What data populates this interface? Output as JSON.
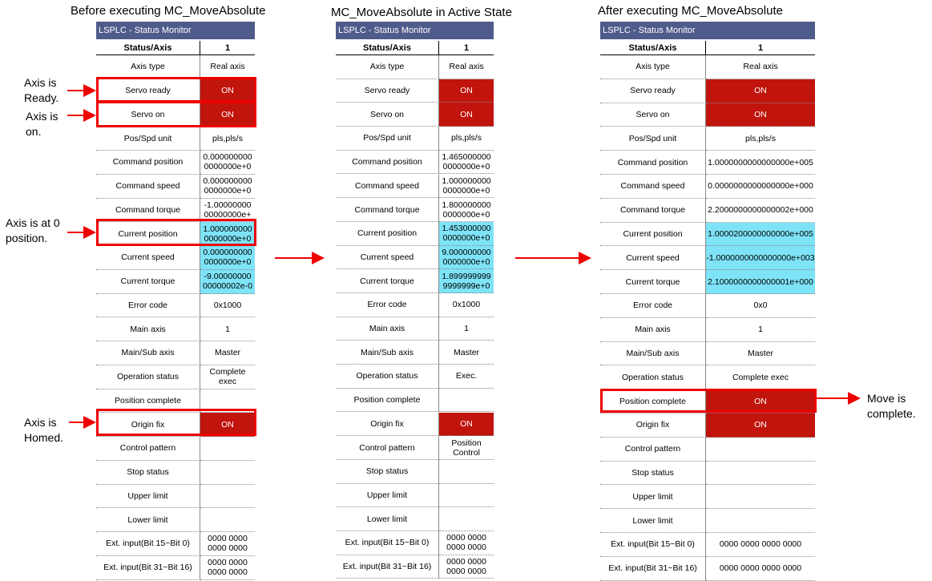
{
  "window_title": "LSPLC - Status Monitor",
  "header": {
    "status_axis": "Status/Axis",
    "axis_number": "1"
  },
  "panels": [
    {
      "title": "Before executing MC_MoveAbsolute",
      "rows": [
        {
          "label": "Axis type",
          "value": "Real axis",
          "style": "plain"
        },
        {
          "label": "Servo ready",
          "value": "ON",
          "style": "on"
        },
        {
          "label": "Servo on",
          "value": "ON",
          "style": "on"
        },
        {
          "label": "Pos/Spd unit",
          "value": "pls,pls/s",
          "style": "plain"
        },
        {
          "label": "Command position",
          "value": "0.000000000 0000000e+0",
          "style": "plain"
        },
        {
          "label": "Command speed",
          "value": "0.000000000 0000000e+0",
          "style": "plain"
        },
        {
          "label": "Command torque",
          "value": "-1.00000000 00000000e+",
          "style": "plain"
        },
        {
          "label": "Current position",
          "value": "1.000000000 0000000e+0",
          "style": "cyan"
        },
        {
          "label": "Current speed",
          "value": "0.000000000 0000000e+0",
          "style": "cyan"
        },
        {
          "label": "Current torque",
          "value": "-9.00000000 00000002e-0",
          "style": "cyan"
        },
        {
          "label": "Error code",
          "value": "0x1000",
          "style": "plain"
        },
        {
          "label": "Main axis",
          "value": "1",
          "style": "plain"
        },
        {
          "label": "Main/Sub axis",
          "value": "Master",
          "style": "plain"
        },
        {
          "label": "Operation status",
          "value": "Complete exec",
          "style": "plain"
        },
        {
          "label": "Position complete",
          "value": "",
          "style": "plain"
        },
        {
          "label": "Origin fix",
          "value": "ON",
          "style": "on"
        },
        {
          "label": "Control pattern",
          "value": "",
          "style": "plain"
        },
        {
          "label": "Stop status",
          "value": "",
          "style": "plain"
        },
        {
          "label": "Upper limit",
          "value": "",
          "style": "plain"
        },
        {
          "label": "Lower limit",
          "value": "",
          "style": "plain"
        },
        {
          "label": "Ext. input(Bit 15~Bit 0)",
          "value": "0000 0000 0000 0000",
          "style": "plain"
        },
        {
          "label": "Ext. input(Bit 31~Bit 16)",
          "value": "0000 0000 0000 0000",
          "style": "plain"
        }
      ]
    },
    {
      "title": "MC_MoveAbsolute in Active State",
      "rows": [
        {
          "label": "Axis type",
          "value": "Real axis",
          "style": "plain"
        },
        {
          "label": "Servo ready",
          "value": "ON",
          "style": "on"
        },
        {
          "label": "Servo on",
          "value": "ON",
          "style": "on"
        },
        {
          "label": "Pos/Spd unit",
          "value": "pls,pls/s",
          "style": "plain"
        },
        {
          "label": "Command position",
          "value": "1.465000000 0000000e+0",
          "style": "plain"
        },
        {
          "label": "Command speed",
          "value": "1.000000000 0000000e+0",
          "style": "plain"
        },
        {
          "label": "Command torque",
          "value": "1.800000000 0000000e+0",
          "style": "plain"
        },
        {
          "label": "Current position",
          "value": "1.453000000 0000000e+0",
          "style": "cyan"
        },
        {
          "label": "Current speed",
          "value": "9.000000000 0000000e+0",
          "style": "cyan"
        },
        {
          "label": "Current torque",
          "value": "1.899999999 9999999e+0",
          "style": "cyan"
        },
        {
          "label": "Error code",
          "value": "0x1000",
          "style": "plain"
        },
        {
          "label": "Main axis",
          "value": "1",
          "style": "plain"
        },
        {
          "label": "Main/Sub axis",
          "value": "Master",
          "style": "plain"
        },
        {
          "label": "Operation status",
          "value": "Exec.",
          "style": "plain"
        },
        {
          "label": "Position complete",
          "value": "",
          "style": "plain"
        },
        {
          "label": "Origin fix",
          "value": "ON",
          "style": "on"
        },
        {
          "label": "Control pattern",
          "value": "Position Control",
          "style": "plain"
        },
        {
          "label": "Stop status",
          "value": "",
          "style": "plain"
        },
        {
          "label": "Upper limit",
          "value": "",
          "style": "plain"
        },
        {
          "label": "Lower limit",
          "value": "",
          "style": "plain"
        },
        {
          "label": "Ext. input(Bit 15~Bit 0)",
          "value": "0000 0000 0000 0000",
          "style": "plain"
        },
        {
          "label": "Ext. input(Bit 31~Bit 16)",
          "value": "0000 0000 0000 0000",
          "style": "plain"
        }
      ]
    },
    {
      "title": "After executing MC_MoveAbsolute",
      "rows": [
        {
          "label": "Axis type",
          "value": "Real axis",
          "style": "plain"
        },
        {
          "label": "Servo ready",
          "value": "ON",
          "style": "on"
        },
        {
          "label": "Servo on",
          "value": "ON",
          "style": "on"
        },
        {
          "label": "Pos/Spd unit",
          "value": "pls,pls/s",
          "style": "plain"
        },
        {
          "label": "Command position",
          "value": "1.0000000000000000e+005",
          "style": "plain"
        },
        {
          "label": "Command speed",
          "value": "0.0000000000000000e+000",
          "style": "plain"
        },
        {
          "label": "Command torque",
          "value": "2.2000000000000002e+000",
          "style": "plain"
        },
        {
          "label": "Current position",
          "value": "1.0000200000000000e+005",
          "style": "cyan"
        },
        {
          "label": "Current speed",
          "value": "-1.0000000000000000e+003",
          "style": "cyan"
        },
        {
          "label": "Current torque",
          "value": "2.1000000000000001e+000",
          "style": "cyan"
        },
        {
          "label": "Error code",
          "value": "0x0",
          "style": "plain"
        },
        {
          "label": "Main axis",
          "value": "1",
          "style": "plain"
        },
        {
          "label": "Main/Sub axis",
          "value": "Master",
          "style": "plain"
        },
        {
          "label": "Operation status",
          "value": "Complete exec",
          "style": "plain"
        },
        {
          "label": "Position complete",
          "value": "ON",
          "style": "on"
        },
        {
          "label": "Origin fix",
          "value": "ON",
          "style": "on"
        },
        {
          "label": "Control pattern",
          "value": "",
          "style": "plain"
        },
        {
          "label": "Stop status",
          "value": "",
          "style": "plain"
        },
        {
          "label": "Upper limit",
          "value": "",
          "style": "plain"
        },
        {
          "label": "Lower limit",
          "value": "",
          "style": "plain"
        },
        {
          "label": "Ext. input(Bit 15~Bit 0)",
          "value": "0000 0000 0000 0000",
          "style": "plain"
        },
        {
          "label": "Ext. input(Bit 31~Bit 16)",
          "value": "0000 0000 0000 0000",
          "style": "plain"
        }
      ]
    }
  ],
  "annotations": {
    "axis_ready": "Axis is Ready.",
    "axis_on": "Axis is on.",
    "axis_zero": "Axis is at 0 position.",
    "axis_homed": "Axis is Homed.",
    "move_complete": "Move is complete."
  },
  "colors": {
    "on": "#c0140c",
    "cyan": "#7ee3f7",
    "highlight": "#ee0000",
    "title_bar": "#4f5b8a"
  }
}
